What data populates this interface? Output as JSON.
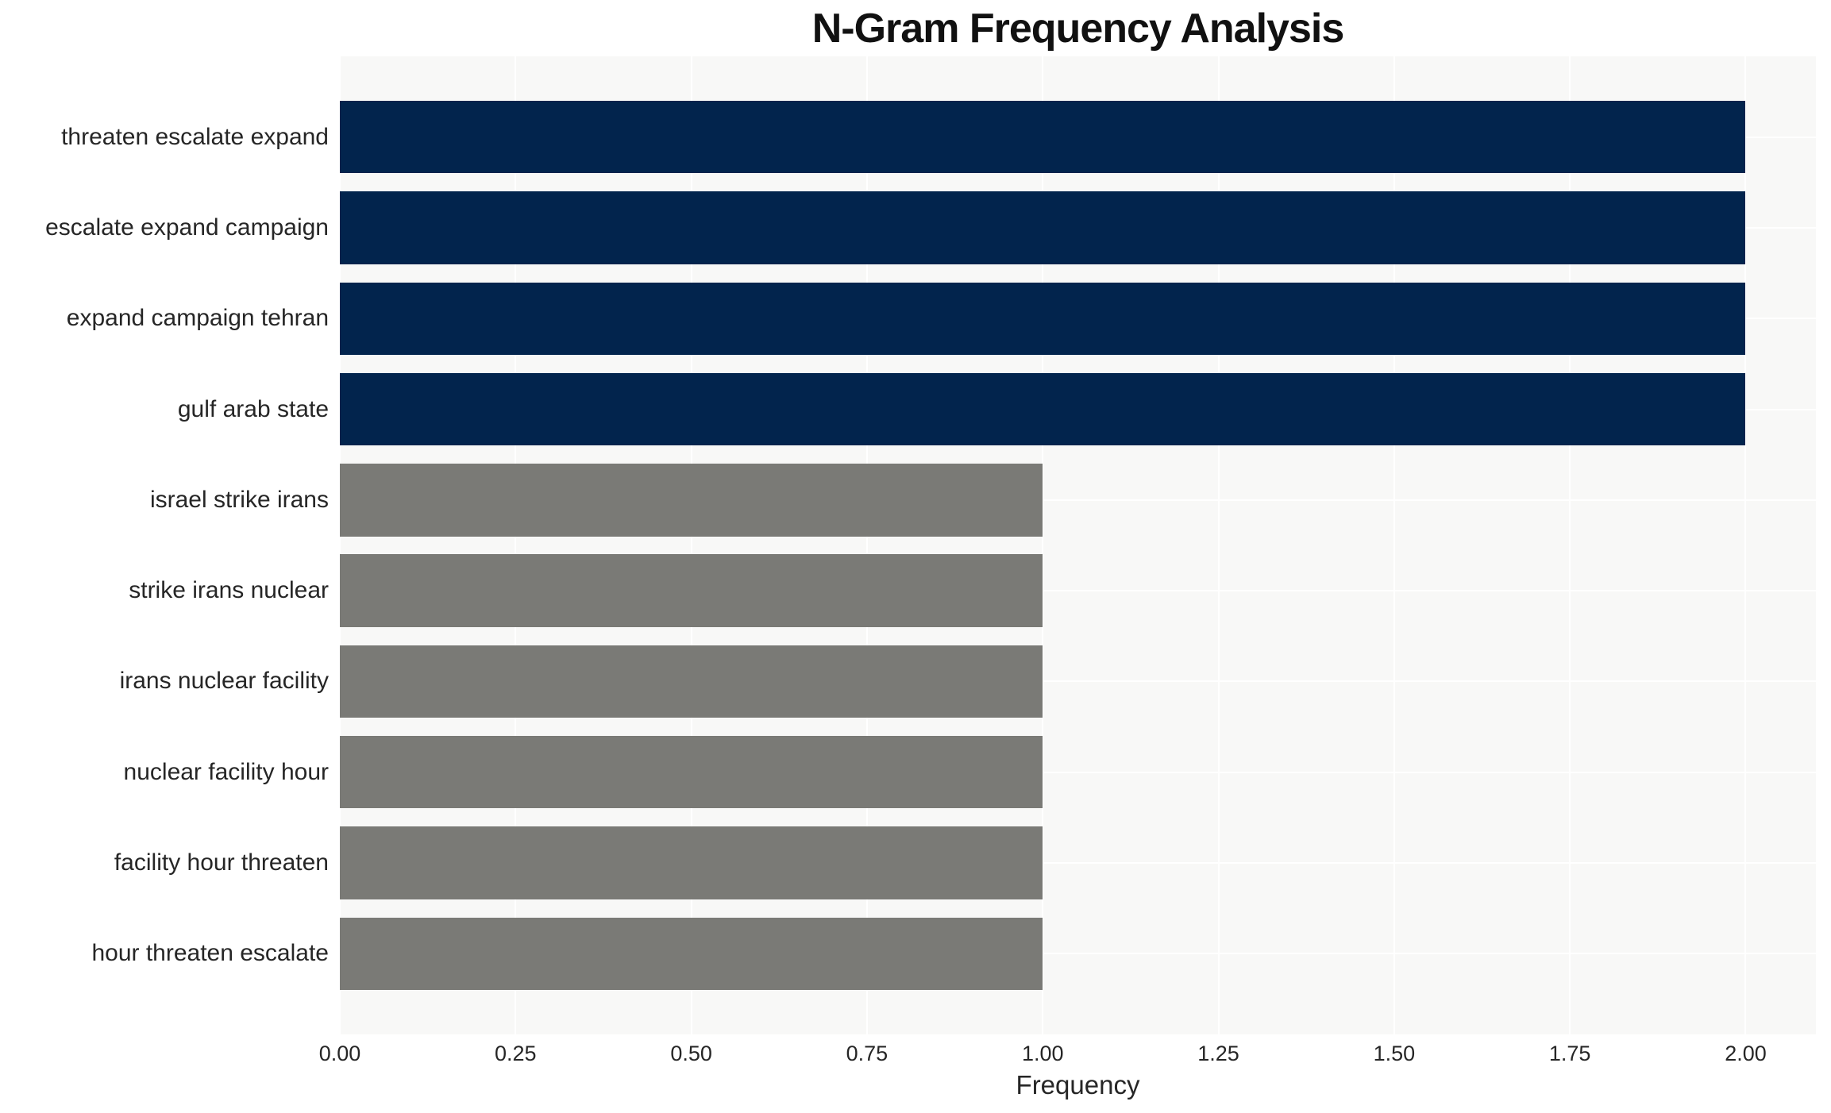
{
  "chart_data": {
    "type": "bar",
    "orientation": "horizontal",
    "title": "N-Gram Frequency Analysis",
    "xlabel": "Frequency",
    "ylabel": "",
    "categories": [
      "threaten escalate expand",
      "escalate expand campaign",
      "expand campaign tehran",
      "gulf arab state",
      "israel strike irans",
      "strike irans nuclear",
      "irans nuclear facility",
      "nuclear facility hour",
      "facility hour threaten",
      "hour threaten escalate"
    ],
    "values": [
      2,
      2,
      2,
      2,
      1,
      1,
      1,
      1,
      1,
      1
    ],
    "bar_colors": [
      "#02244d",
      "#02244d",
      "#02244d",
      "#02244d",
      "#7a7a76",
      "#7a7a76",
      "#7a7a76",
      "#7a7a76",
      "#7a7a76",
      "#7a7a76"
    ],
    "xticks": [
      {
        "value": 0.0,
        "label": "0.00"
      },
      {
        "value": 0.25,
        "label": "0.25"
      },
      {
        "value": 0.5,
        "label": "0.50"
      },
      {
        "value": 0.75,
        "label": "0.75"
      },
      {
        "value": 1.0,
        "label": "1.00"
      },
      {
        "value": 1.25,
        "label": "1.25"
      },
      {
        "value": 1.5,
        "label": "1.50"
      },
      {
        "value": 1.75,
        "label": "1.75"
      },
      {
        "value": 2.0,
        "label": "2.00"
      }
    ],
    "xlim": [
      0,
      2.1
    ],
    "grid": true,
    "legend_position": "none",
    "colors": {
      "plot_background": "#f8f8f7",
      "grid": "#ffffff",
      "high_value": "#02244d",
      "low_value": "#7a7a76",
      "text": "#262626"
    }
  }
}
